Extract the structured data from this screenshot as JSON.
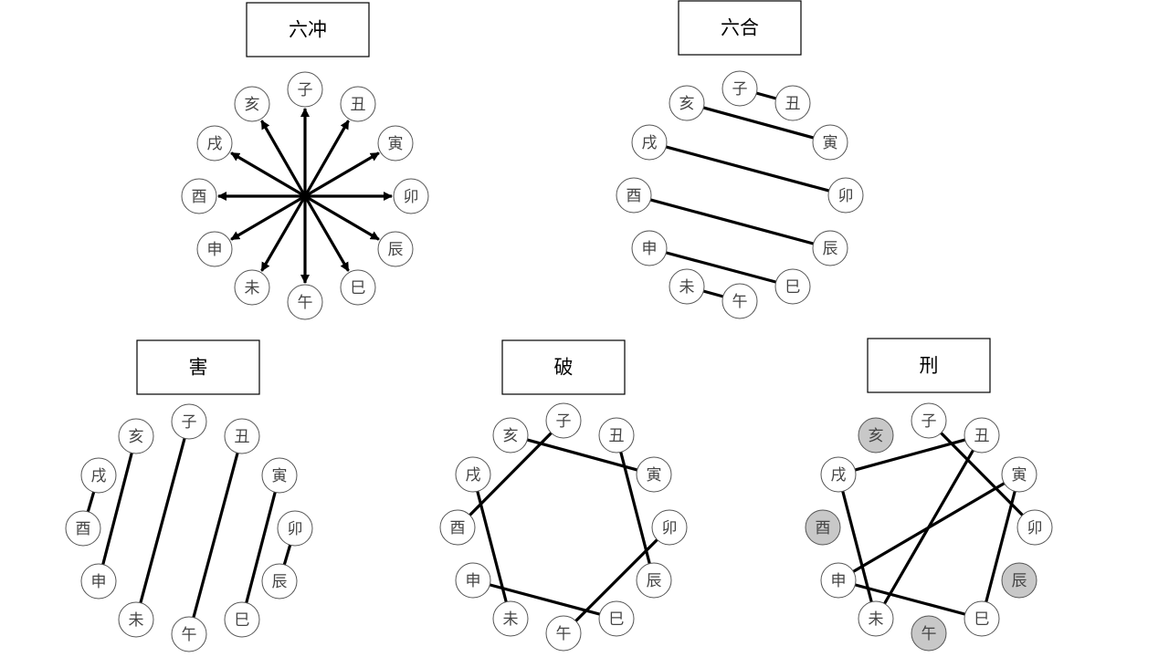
{
  "colors": {
    "node_fill": "#ffffff",
    "node_highlight": "#c8c8c8",
    "line": "#000000"
  },
  "diagrams": [
    {
      "id": "liuchong",
      "title": "六冲",
      "nodes": [
        "子",
        "丑",
        "寅",
        "卯",
        "辰",
        "巳",
        "午",
        "未",
        "申",
        "酉",
        "戌",
        "亥"
      ],
      "highlight": [],
      "arrows_from_center": true,
      "links": []
    },
    {
      "id": "liuhe",
      "title": "六合",
      "nodes": [
        "子",
        "丑",
        "寅",
        "卯",
        "辰",
        "巳",
        "午",
        "未",
        "申",
        "酉",
        "戌",
        "亥"
      ],
      "highlight": [],
      "links": [
        [
          "子",
          "丑"
        ],
        [
          "亥",
          "寅"
        ],
        [
          "戌",
          "卯"
        ],
        [
          "酉",
          "辰"
        ],
        [
          "申",
          "巳"
        ],
        [
          "未",
          "午"
        ]
      ]
    },
    {
      "id": "hai",
      "title": "害",
      "nodes": [
        "子",
        "丑",
        "寅",
        "卯",
        "辰",
        "巳",
        "午",
        "未",
        "申",
        "酉",
        "戌",
        "亥"
      ],
      "highlight": [],
      "links": [
        [
          "子",
          "未"
        ],
        [
          "丑",
          "午"
        ],
        [
          "寅",
          "巳"
        ],
        [
          "卯",
          "辰"
        ],
        [
          "申",
          "亥"
        ],
        [
          "酉",
          "戌"
        ]
      ]
    },
    {
      "id": "po",
      "title": "破",
      "nodes": [
        "子",
        "丑",
        "寅",
        "卯",
        "辰",
        "巳",
        "午",
        "未",
        "申",
        "酉",
        "戌",
        "亥"
      ],
      "highlight": [],
      "links": [
        [
          "子",
          "酉"
        ],
        [
          "亥",
          "寅"
        ],
        [
          "丑",
          "辰"
        ],
        [
          "卯",
          "午"
        ],
        [
          "申",
          "巳"
        ],
        [
          "戌",
          "未"
        ]
      ]
    },
    {
      "id": "xing",
      "title": "刑",
      "nodes": [
        "子",
        "丑",
        "寅",
        "卯",
        "辰",
        "巳",
        "午",
        "未",
        "申",
        "酉",
        "戌",
        "亥"
      ],
      "highlight": [
        "亥",
        "酉",
        "辰",
        "午"
      ],
      "links": [
        [
          "子",
          "卯"
        ],
        [
          "丑",
          "戌"
        ],
        [
          "丑",
          "未"
        ],
        [
          "戌",
          "未"
        ],
        [
          "寅",
          "申"
        ],
        [
          "寅",
          "巳"
        ],
        [
          "申",
          "巳"
        ]
      ]
    }
  ]
}
